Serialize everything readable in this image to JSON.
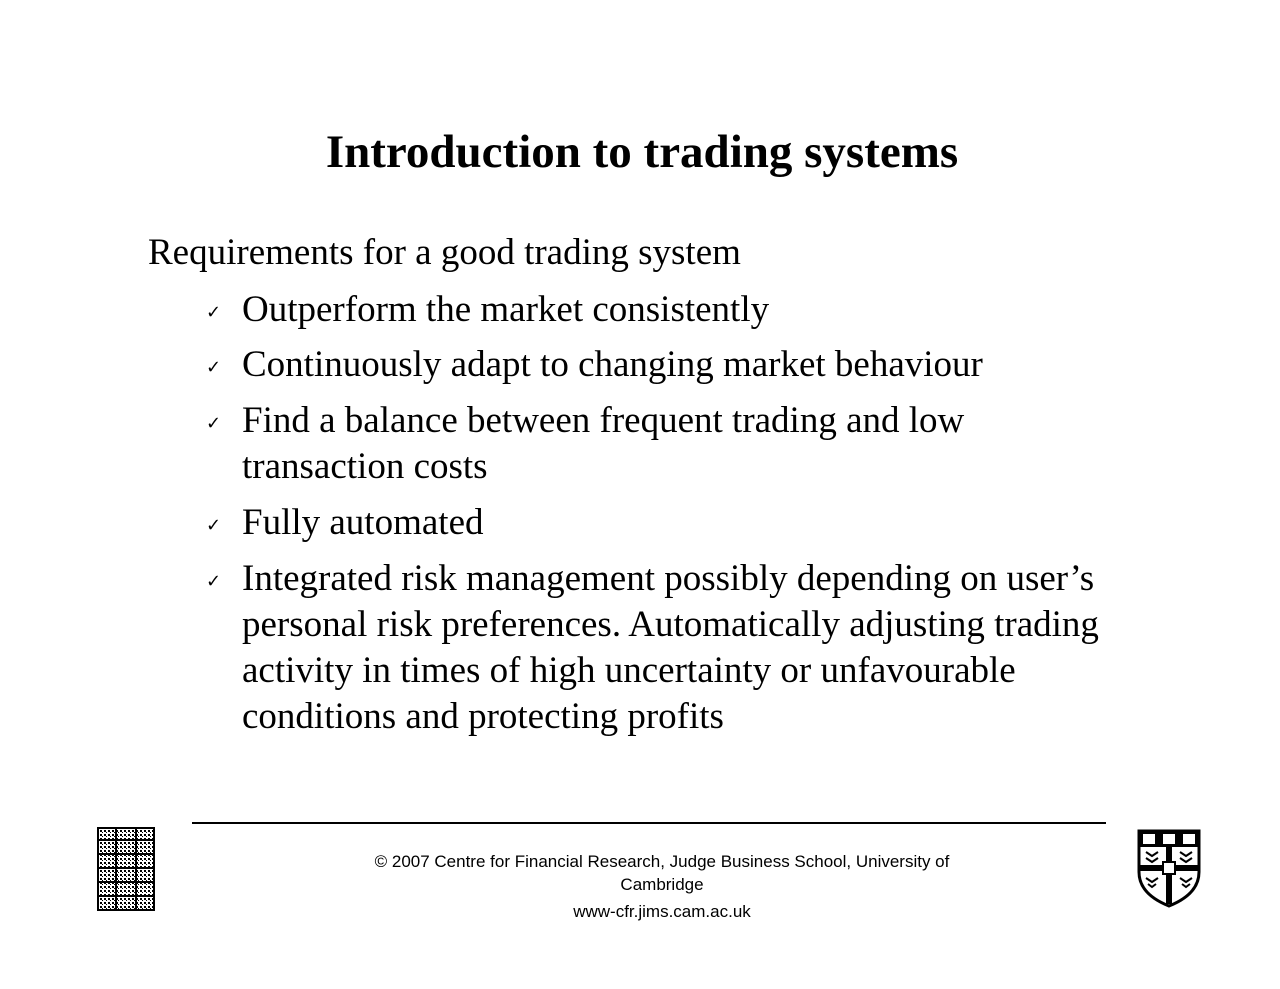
{
  "slide": {
    "title": "Introduction to trading systems",
    "intro": "Requirements for a good trading system",
    "bullet_icon": "check-mark-icon",
    "bullet_glyph": "✓",
    "bullets": [
      {
        "lines": [
          "Outperform the market consistently"
        ]
      },
      {
        "lines": [
          "Continuously adapt to changing market behaviour"
        ]
      },
      {
        "lines": [
          "Find a balance between frequent trading and low",
          "transaction costs"
        ]
      },
      {
        "lines": [
          "Fully automated"
        ]
      },
      {
        "lines": [
          "Integrated risk management possibly depending on user’s",
          "personal risk preferences. Automatically adjusting trading",
          "activity in times of high uncertainty or unfavourable",
          "conditions and protecting profits"
        ]
      }
    ]
  },
  "footer": {
    "copyright_line1": "© 2007 Centre for Financial Research,  Judge Business School,  University of",
    "copyright_line2": "Cambridge",
    "url": "www-cfr.jims.cam.ac.uk",
    "left_logo_icon": "judge-business-school-logo-icon",
    "right_logo_icon": "university-of-cambridge-crest-icon"
  }
}
